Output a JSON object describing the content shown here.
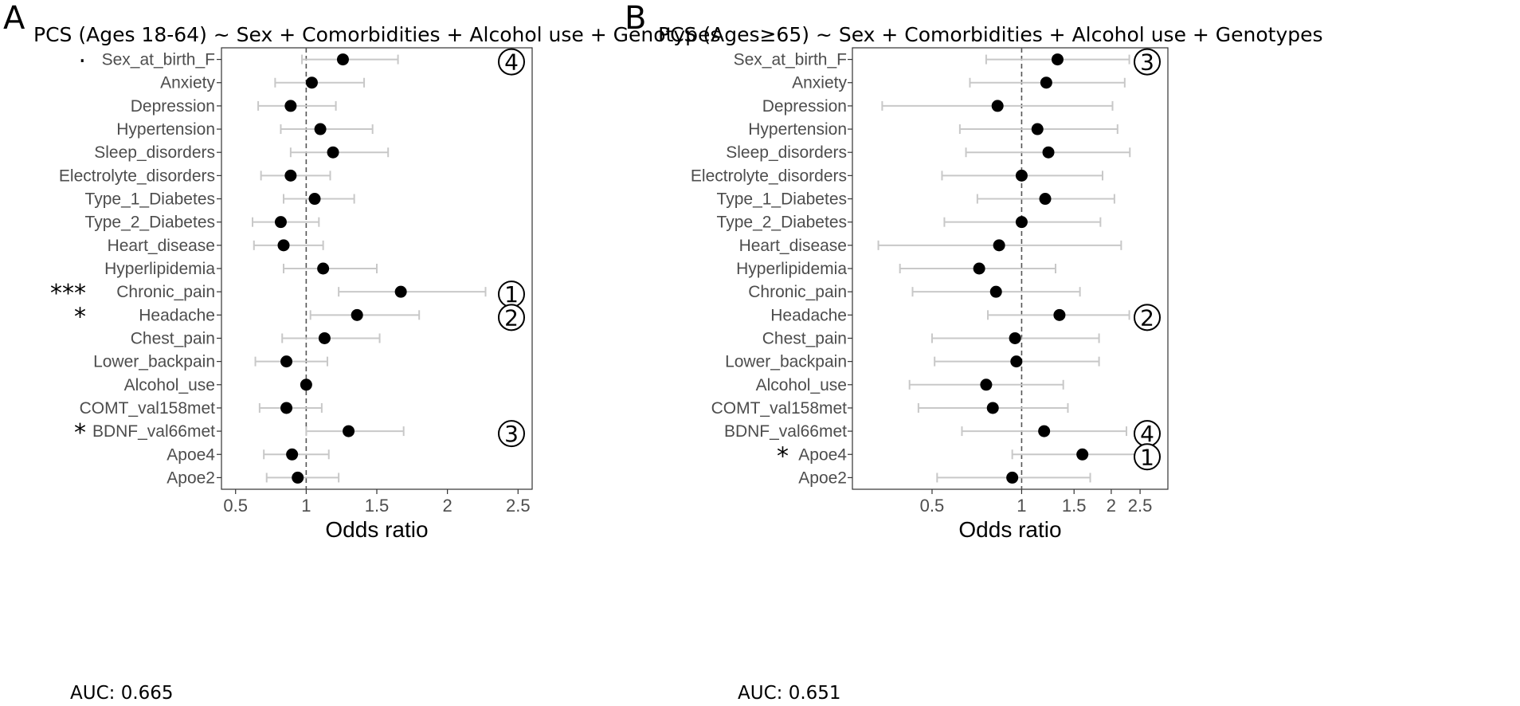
{
  "chart_data": [
    {
      "type": "forest",
      "panel": "A",
      "title": "PCS (Ages 18-64) ~ Sex + Comorbidities + Alcohol use + Genotypes",
      "xlabel": "Odds ratio",
      "ylabel": "",
      "xlim": [
        0.4,
        2.6
      ],
      "xticks": [
        0.5,
        1,
        1.5,
        2,
        2.5
      ],
      "xtick_labels": [
        "0.5",
        "1",
        "1.5",
        "2",
        "2.5"
      ],
      "reference_line": 1,
      "auc_label": "AUC: 0.665",
      "rows": [
        {
          "label": "Sex_at_birth_F",
          "sig": "·",
          "or": 1.26,
          "lo": 0.97,
          "hi": 1.65,
          "rank": "4"
        },
        {
          "label": "Anxiety",
          "sig": "",
          "or": 1.04,
          "lo": 0.78,
          "hi": 1.41,
          "rank": ""
        },
        {
          "label": "Depression",
          "sig": "",
          "or": 0.89,
          "lo": 0.66,
          "hi": 1.21,
          "rank": ""
        },
        {
          "label": "Hypertension",
          "sig": "",
          "or": 1.1,
          "lo": 0.82,
          "hi": 1.47,
          "rank": ""
        },
        {
          "label": "Sleep_disorders",
          "sig": "",
          "or": 1.19,
          "lo": 0.89,
          "hi": 1.58,
          "rank": ""
        },
        {
          "label": "Electrolyte_disorders",
          "sig": "",
          "or": 0.89,
          "lo": 0.68,
          "hi": 1.17,
          "rank": ""
        },
        {
          "label": "Type_1_Diabetes",
          "sig": "",
          "or": 1.06,
          "lo": 0.84,
          "hi": 1.34,
          "rank": ""
        },
        {
          "label": "Type_2_Diabetes",
          "sig": "",
          "or": 0.82,
          "lo": 0.62,
          "hi": 1.09,
          "rank": ""
        },
        {
          "label": "Heart_disease",
          "sig": "",
          "or": 0.84,
          "lo": 0.63,
          "hi": 1.12,
          "rank": ""
        },
        {
          "label": "Hyperlipidemia",
          "sig": "",
          "or": 1.12,
          "lo": 0.84,
          "hi": 1.5,
          "rank": ""
        },
        {
          "label": "Chronic_pain",
          "sig": "***",
          "or": 1.67,
          "lo": 1.23,
          "hi": 2.27,
          "rank": "1"
        },
        {
          "label": "Headache",
          "sig": "*",
          "or": 1.36,
          "lo": 1.03,
          "hi": 1.8,
          "rank": "2"
        },
        {
          "label": "Chest_pain",
          "sig": "",
          "or": 1.13,
          "lo": 0.83,
          "hi": 1.52,
          "rank": ""
        },
        {
          "label": "Lower_backpain",
          "sig": "",
          "or": 0.86,
          "lo": 0.64,
          "hi": 1.15,
          "rank": ""
        },
        {
          "label": "Alcohol_use",
          "sig": "",
          "or": 1.0,
          "lo": 1.0,
          "hi": 1.0,
          "rank": ""
        },
        {
          "label": "COMT_val158met",
          "sig": "",
          "or": 0.86,
          "lo": 0.67,
          "hi": 1.11,
          "rank": ""
        },
        {
          "label": "BDNF_val66met",
          "sig": "*",
          "or": 1.3,
          "lo": 1.0,
          "hi": 1.69,
          "rank": "3"
        },
        {
          "label": "Apoe4",
          "sig": "",
          "or": 0.9,
          "lo": 0.7,
          "hi": 1.16,
          "rank": ""
        },
        {
          "label": "Apoe2",
          "sig": "",
          "or": 0.94,
          "lo": 0.72,
          "hi": 1.23,
          "rank": ""
        }
      ]
    },
    {
      "type": "forest",
      "panel": "B",
      "title": "PCS (Ages≥65) ~ Sex + Comorbidities + Alcohol use + Genotypes",
      "xlabel": "Odds ratio",
      "ylabel": "",
      "xlim": [
        0.27,
        3.1
      ],
      "xscale": "log",
      "xticks": [
        0.5,
        1,
        1.5,
        2,
        2.5
      ],
      "xtick_labels": [
        "0.5",
        "1",
        "1.5",
        "2",
        "2.5"
      ],
      "reference_line": 1,
      "auc_label": "AUC: 0.651",
      "rows": [
        {
          "label": "Sex_at_birth_F",
          "sig": "",
          "or": 1.32,
          "lo": 0.76,
          "hi": 2.3,
          "rank": "3"
        },
        {
          "label": "Anxiety",
          "sig": "",
          "or": 1.21,
          "lo": 0.67,
          "hi": 2.22,
          "rank": ""
        },
        {
          "label": "Depression",
          "sig": "",
          "or": 0.83,
          "lo": 0.34,
          "hi": 2.02,
          "rank": ""
        },
        {
          "label": "Hypertension",
          "sig": "",
          "or": 1.13,
          "lo": 0.62,
          "hi": 2.1,
          "rank": ""
        },
        {
          "label": "Sleep_disorders",
          "sig": "",
          "or": 1.23,
          "lo": 0.65,
          "hi": 2.31,
          "rank": ""
        },
        {
          "label": "Electrolyte_disorders",
          "sig": "",
          "or": 1.0,
          "lo": 0.54,
          "hi": 1.87,
          "rank": ""
        },
        {
          "label": "Type_1_Diabetes",
          "sig": "",
          "or": 1.2,
          "lo": 0.71,
          "hi": 2.05,
          "rank": ""
        },
        {
          "label": "Type_2_Diabetes",
          "sig": "",
          "or": 1.0,
          "lo": 0.55,
          "hi": 1.84,
          "rank": ""
        },
        {
          "label": "Heart_disease",
          "sig": "",
          "or": 0.84,
          "lo": 0.33,
          "hi": 2.16,
          "rank": ""
        },
        {
          "label": "Hyperlipidemia",
          "sig": "",
          "or": 0.72,
          "lo": 0.39,
          "hi": 1.3,
          "rank": ""
        },
        {
          "label": "Chronic_pain",
          "sig": "",
          "or": 0.82,
          "lo": 0.43,
          "hi": 1.57,
          "rank": ""
        },
        {
          "label": "Headache",
          "sig": "",
          "or": 1.34,
          "lo": 0.77,
          "hi": 2.3,
          "rank": "2"
        },
        {
          "label": "Chest_pain",
          "sig": "",
          "or": 0.95,
          "lo": 0.5,
          "hi": 1.82,
          "rank": ""
        },
        {
          "label": "Lower_backpain",
          "sig": "",
          "or": 0.96,
          "lo": 0.51,
          "hi": 1.82,
          "rank": ""
        },
        {
          "label": "Alcohol_use",
          "sig": "",
          "or": 0.76,
          "lo": 0.42,
          "hi": 1.38,
          "rank": ""
        },
        {
          "label": "COMT_val158met",
          "sig": "",
          "or": 0.8,
          "lo": 0.45,
          "hi": 1.43,
          "rank": ""
        },
        {
          "label": "BDNF_val66met",
          "sig": "",
          "or": 1.19,
          "lo": 0.63,
          "hi": 2.25,
          "rank": "4"
        },
        {
          "label": "Apoe4",
          "sig": "*",
          "or": 1.6,
          "lo": 0.93,
          "hi": 2.75,
          "rank": "1"
        },
        {
          "label": "Apoe2",
          "sig": "",
          "or": 0.93,
          "lo": 0.52,
          "hi": 1.7,
          "rank": ""
        }
      ]
    }
  ],
  "colors": {
    "point": "#000000",
    "ci": "#c8c8c8",
    "axis_text": "#4d4d4d",
    "panel_border": "#333333",
    "reference_line": "#555555"
  }
}
